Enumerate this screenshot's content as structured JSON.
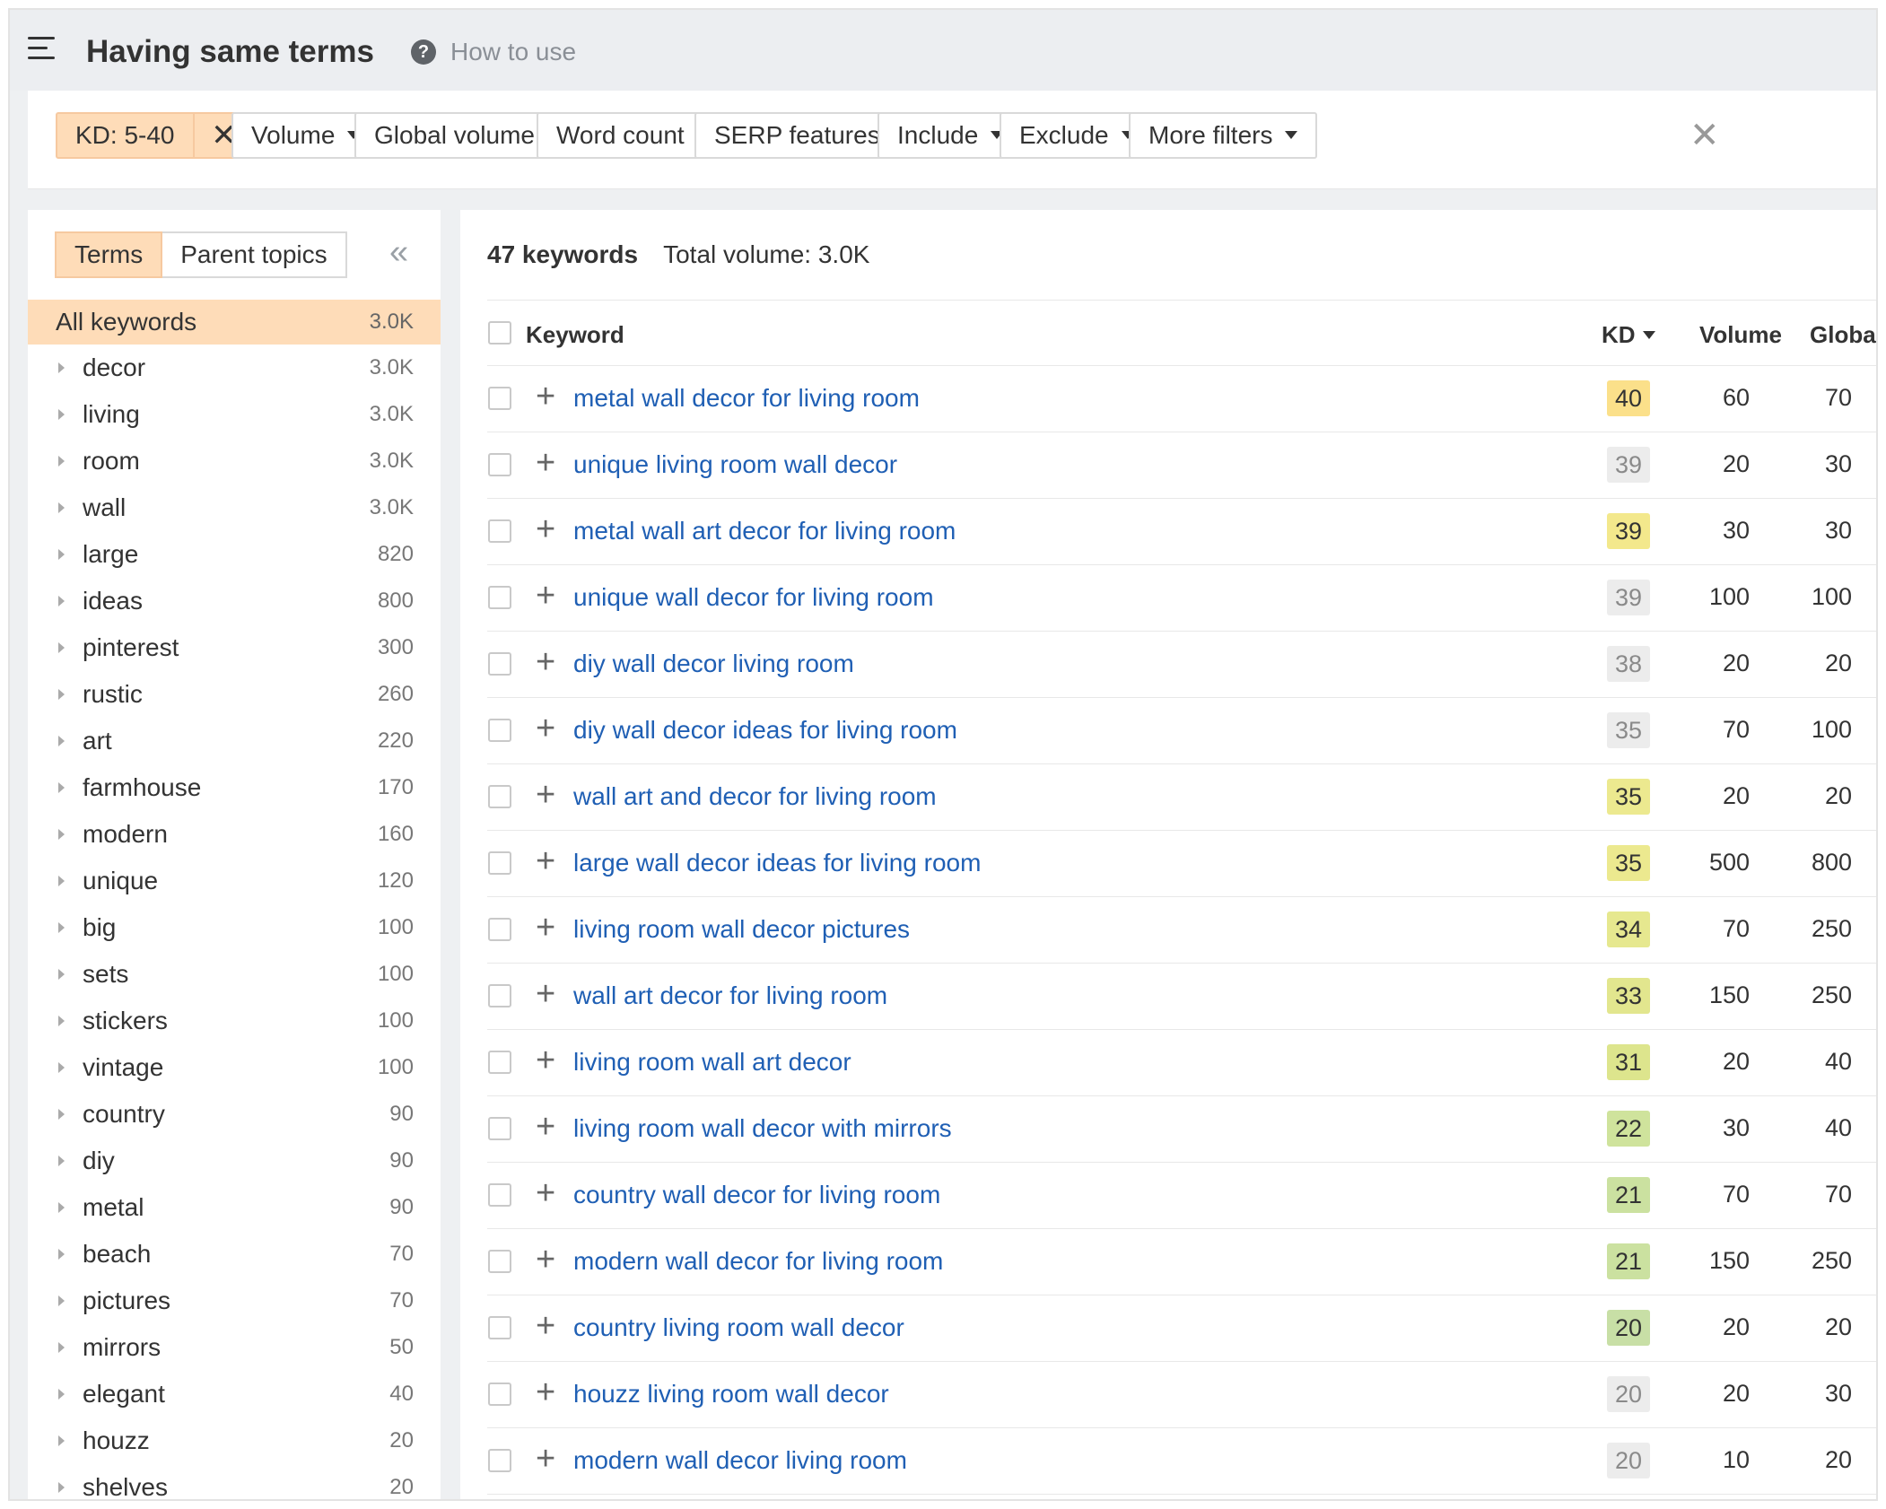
{
  "header": {
    "title": "Having same terms",
    "help_label": "How to use"
  },
  "filters": {
    "kd_chip": "KD: 5-40",
    "buttons": [
      "Volume",
      "Global volume",
      "Word count",
      "SERP features",
      "Include",
      "Exclude",
      "More filters"
    ]
  },
  "sidebar": {
    "tabs": [
      "Terms",
      "Parent topics"
    ],
    "all": {
      "name": "All keywords",
      "count": "3.0K"
    },
    "terms": [
      {
        "name": "decor",
        "count": "3.0K"
      },
      {
        "name": "living",
        "count": "3.0K"
      },
      {
        "name": "room",
        "count": "3.0K"
      },
      {
        "name": "wall",
        "count": "3.0K"
      },
      {
        "name": "large",
        "count": "820"
      },
      {
        "name": "ideas",
        "count": "800"
      },
      {
        "name": "pinterest",
        "count": "300"
      },
      {
        "name": "rustic",
        "count": "260"
      },
      {
        "name": "art",
        "count": "220"
      },
      {
        "name": "farmhouse",
        "count": "170"
      },
      {
        "name": "modern",
        "count": "160"
      },
      {
        "name": "unique",
        "count": "120"
      },
      {
        "name": "big",
        "count": "100"
      },
      {
        "name": "sets",
        "count": "100"
      },
      {
        "name": "stickers",
        "count": "100"
      },
      {
        "name": "vintage",
        "count": "100"
      },
      {
        "name": "country",
        "count": "90"
      },
      {
        "name": "diy",
        "count": "90"
      },
      {
        "name": "metal",
        "count": "90"
      },
      {
        "name": "beach",
        "count": "70"
      },
      {
        "name": "pictures",
        "count": "70"
      },
      {
        "name": "mirrors",
        "count": "50"
      },
      {
        "name": "elegant",
        "count": "40"
      },
      {
        "name": "houzz",
        "count": "20"
      },
      {
        "name": "shelves",
        "count": "20"
      }
    ]
  },
  "summary": {
    "keywords": "47 keywords",
    "total": "Total volume: 3.0K"
  },
  "table": {
    "headers": {
      "keyword": "Keyword",
      "kd": "KD",
      "volume": "Volume",
      "global": "Global"
    },
    "kd_colors": {
      "40": "#fbe08a",
      "39-yellow": "#f3e88c",
      "gray": "#ececec",
      "35": "#ece98f",
      "34": "#e6e88f",
      "33": "#e2e68e",
      "31": "#dde58d",
      "22": "#cfe39c",
      "21": "#cbe1a0",
      "20": "#c8dfa6"
    },
    "rows": [
      {
        "keyword": "metal wall decor for living room",
        "kd": "40",
        "kd_color": "#fbe08a",
        "kd_text": "#333333",
        "volume": "60",
        "global": "70"
      },
      {
        "keyword": "unique living room wall decor",
        "kd": "39",
        "kd_color": "#ececec",
        "kd_text": "#8a8a8a",
        "volume": "20",
        "global": "30"
      },
      {
        "keyword": "metal wall art decor for living room",
        "kd": "39",
        "kd_color": "#f3e88c",
        "kd_text": "#333333",
        "volume": "30",
        "global": "30"
      },
      {
        "keyword": "unique wall decor for living room",
        "kd": "39",
        "kd_color": "#ececec",
        "kd_text": "#8a8a8a",
        "volume": "100",
        "global": "100"
      },
      {
        "keyword": "diy wall decor living room",
        "kd": "38",
        "kd_color": "#ececec",
        "kd_text": "#8a8a8a",
        "volume": "20",
        "global": "20"
      },
      {
        "keyword": "diy wall decor ideas for living room",
        "kd": "35",
        "kd_color": "#ececec",
        "kd_text": "#8a8a8a",
        "volume": "70",
        "global": "100"
      },
      {
        "keyword": "wall art and decor for living room",
        "kd": "35",
        "kd_color": "#ece98f",
        "kd_text": "#333333",
        "volume": "20",
        "global": "20"
      },
      {
        "keyword": "large wall decor ideas for living room",
        "kd": "35",
        "kd_color": "#ece98f",
        "kd_text": "#333333",
        "volume": "500",
        "global": "800"
      },
      {
        "keyword": "living room wall decor pictures",
        "kd": "34",
        "kd_color": "#e6e88f",
        "kd_text": "#333333",
        "volume": "70",
        "global": "250"
      },
      {
        "keyword": "wall art decor for living room",
        "kd": "33",
        "kd_color": "#e2e68e",
        "kd_text": "#333333",
        "volume": "150",
        "global": "250"
      },
      {
        "keyword": "living room wall art decor",
        "kd": "31",
        "kd_color": "#dde58d",
        "kd_text": "#333333",
        "volume": "20",
        "global": "40"
      },
      {
        "keyword": "living room wall decor with mirrors",
        "kd": "22",
        "kd_color": "#cfe39c",
        "kd_text": "#333333",
        "volume": "30",
        "global": "40"
      },
      {
        "keyword": "country wall decor for living room",
        "kd": "21",
        "kd_color": "#cbe1a0",
        "kd_text": "#333333",
        "volume": "70",
        "global": "70"
      },
      {
        "keyword": "modern wall decor for living room",
        "kd": "21",
        "kd_color": "#cbe1a0",
        "kd_text": "#333333",
        "volume": "150",
        "global": "250"
      },
      {
        "keyword": "country living room wall decor",
        "kd": "20",
        "kd_color": "#c8dfa6",
        "kd_text": "#333333",
        "volume": "20",
        "global": "20"
      },
      {
        "keyword": "houzz living room wall decor",
        "kd": "20",
        "kd_color": "#ececec",
        "kd_text": "#8a8a8a",
        "volume": "20",
        "global": "30"
      },
      {
        "keyword": "modern wall decor living room",
        "kd": "20",
        "kd_color": "#ececec",
        "kd_text": "#8a8a8a",
        "volume": "10",
        "global": "20"
      }
    ]
  }
}
